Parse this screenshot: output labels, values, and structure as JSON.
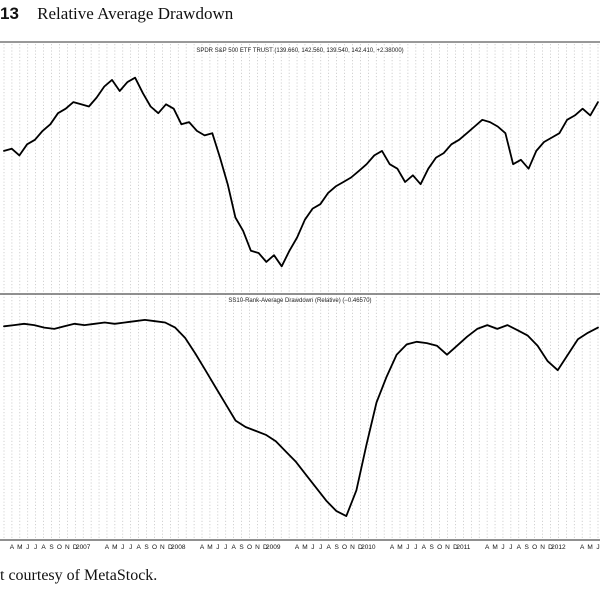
{
  "figure": {
    "number": "13",
    "title": "Relative Average Drawdown",
    "caption": "t courtesy of MetaStock."
  },
  "chart_data": [
    {
      "type": "line",
      "title": "SPDR S&P 500 ETF TRUST (139.660, 142.560, 139.540, 142.410, +2.38000)",
      "x_tick_labels": [
        "",
        "A",
        "M",
        "J",
        "J",
        "A",
        "S",
        "O",
        "N",
        "D",
        "2007",
        "",
        "",
        "A",
        "M",
        "J",
        "J",
        "A",
        "S",
        "O",
        "N",
        "D",
        "2008",
        "",
        "",
        "A",
        "M",
        "J",
        "J",
        "A",
        "S",
        "O",
        "N",
        "D",
        "2009",
        "",
        "",
        "A",
        "M",
        "J",
        "J",
        "A",
        "S",
        "O",
        "N",
        "D",
        "2010",
        "",
        "",
        "A",
        "M",
        "J",
        "J",
        "A",
        "S",
        "O",
        "N",
        "D",
        "2011",
        "",
        "",
        "A",
        "M",
        "J",
        "J",
        "A",
        "S",
        "O",
        "N",
        "D",
        "2012",
        "",
        "",
        "A",
        "M",
        "J"
      ],
      "grid": true,
      "series": [
        {
          "values": [
            120,
            121,
            118,
            123,
            125,
            129,
            132,
            137,
            139,
            142,
            141,
            140,
            144,
            149,
            152,
            147,
            151,
            153,
            146,
            140,
            137,
            141,
            139,
            132,
            133,
            129,
            127,
            128,
            117,
            105,
            90,
            84,
            75,
            74,
            70,
            73,
            68,
            75,
            81,
            89,
            94,
            96,
            101,
            104,
            106,
            108,
            111,
            114,
            118,
            120,
            114,
            112,
            106,
            109,
            105,
            112,
            117,
            119,
            123,
            125,
            128,
            131,
            134,
            133,
            131,
            128,
            114,
            116,
            112,
            120,
            124,
            126,
            128,
            134,
            136,
            139,
            136,
            142
          ]
        }
      ]
    },
    {
      "type": "line",
      "title": "SS10-Rank-Average Drawdown (Relative) (−0.46570)",
      "x_tick_labels": [
        "",
        "A",
        "M",
        "J",
        "J",
        "A",
        "S",
        "O",
        "N",
        "D",
        "2007",
        "",
        "",
        "A",
        "M",
        "J",
        "J",
        "A",
        "S",
        "O",
        "N",
        "D",
        "2008",
        "",
        "",
        "A",
        "M",
        "J",
        "J",
        "A",
        "S",
        "O",
        "N",
        "D",
        "2009",
        "",
        "",
        "A",
        "M",
        "J",
        "J",
        "A",
        "S",
        "O",
        "N",
        "D",
        "2010",
        "",
        "",
        "A",
        "M",
        "J",
        "J",
        "A",
        "S",
        "O",
        "N",
        "D",
        "2011",
        "",
        "",
        "A",
        "M",
        "J",
        "J",
        "A",
        "S",
        "O",
        "N",
        "D",
        "2012",
        "",
        "",
        "A",
        "M",
        "J"
      ],
      "grid": true,
      "series": [
        {
          "values": [
            -0.13,
            -0.12,
            -0.11,
            -0.12,
            -0.14,
            -0.15,
            -0.13,
            -0.11,
            -0.12,
            -0.11,
            -0.1,
            -0.11,
            -0.1,
            -0.09,
            -0.08,
            -0.09,
            -0.1,
            -0.14,
            -0.22,
            -0.34,
            -0.47,
            -0.6,
            -0.73,
            -0.86,
            -0.91,
            -0.94,
            -0.97,
            -1.02,
            -1.1,
            -1.18,
            -1.28,
            -1.38,
            -1.48,
            -1.56,
            -1.6,
            -1.4,
            -1.05,
            -0.72,
            -0.52,
            -0.35,
            -0.27,
            -0.25,
            -0.26,
            -0.28,
            -0.35,
            -0.28,
            -0.21,
            -0.15,
            -0.12,
            -0.15,
            -0.12,
            -0.16,
            -0.2,
            -0.28,
            -0.4,
            -0.47,
            -0.35,
            -0.23,
            -0.18,
            -0.14
          ]
        }
      ]
    }
  ]
}
